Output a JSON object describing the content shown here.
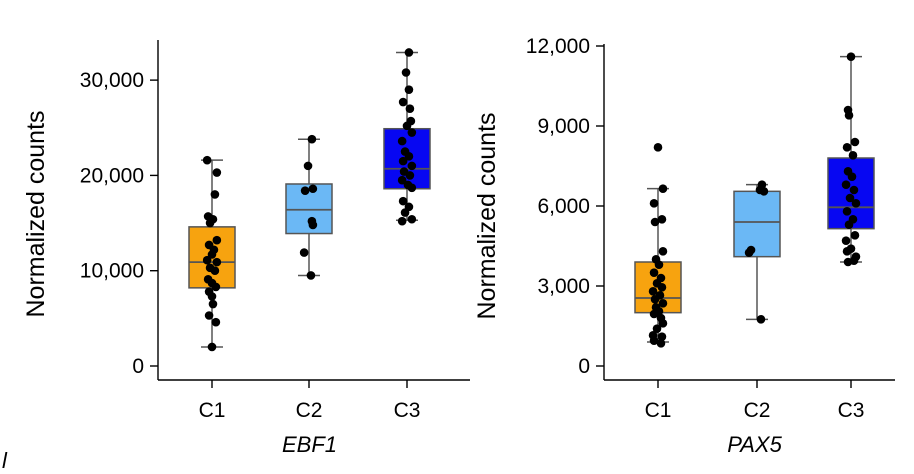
{
  "chart_data": [
    {
      "type": "box",
      "title": "",
      "xlabel": "EBF1",
      "ylabel": "Normalized counts",
      "ylim": [
        0,
        34000
      ],
      "yticks": [
        0,
        10000,
        20000,
        30000
      ],
      "ytick_labels": [
        "0",
        "10,000",
        "20,000",
        "30,000"
      ],
      "categories": [
        "C1",
        "C2",
        "C3"
      ],
      "colors": [
        "#F7A30F",
        "#6BB8F5",
        "#0707F2"
      ],
      "boxes": [
        {
          "category": "C1",
          "whisker_low": 2000,
          "q1": 8200,
          "median": 10900,
          "q3": 14600,
          "whisker_high": 21600
        },
        {
          "category": "C2",
          "whisker_low": 9500,
          "q1": 13900,
          "median": 16400,
          "q3": 19100,
          "whisker_high": 23800
        },
        {
          "category": "C3",
          "whisker_low": 15300,
          "q1": 18600,
          "median": 20700,
          "q3": 24900,
          "whisker_high": 32900
        }
      ],
      "points": [
        [
          {
            "x": -0.05,
            "y": 21600
          },
          {
            "x": 0.05,
            "y": 20300
          },
          {
            "x": 0.03,
            "y": 18000
          },
          {
            "x": -0.04,
            "y": 15700
          },
          {
            "x": 0.01,
            "y": 15400
          },
          {
            "x": -0.02,
            "y": 15000
          },
          {
            "x": 0.05,
            "y": 13200
          },
          {
            "x": -0.03,
            "y": 12700
          },
          {
            "x": 0.02,
            "y": 12200
          },
          {
            "x": 0.0,
            "y": 11700
          },
          {
            "x": -0.05,
            "y": 11100
          },
          {
            "x": 0.05,
            "y": 10900
          },
          {
            "x": -0.02,
            "y": 10300
          },
          {
            "x": 0.03,
            "y": 10000
          },
          {
            "x": -0.04,
            "y": 9100
          },
          {
            "x": 0.0,
            "y": 8700
          },
          {
            "x": 0.04,
            "y": 8300
          },
          {
            "x": -0.03,
            "y": 7800
          },
          {
            "x": 0.0,
            "y": 7300
          },
          {
            "x": 0.01,
            "y": 6500
          },
          {
            "x": -0.03,
            "y": 5300
          },
          {
            "x": 0.04,
            "y": 4600
          },
          {
            "x": 0.0,
            "y": 2000
          }
        ],
        [
          {
            "x": 0.03,
            "y": 23800
          },
          {
            "x": -0.01,
            "y": 21000
          },
          {
            "x": 0.04,
            "y": 18600
          },
          {
            "x": -0.04,
            "y": 18400
          },
          {
            "x": 0.03,
            "y": 15200
          },
          {
            "x": 0.04,
            "y": 14800
          },
          {
            "x": -0.05,
            "y": 11900
          },
          {
            "x": 0.02,
            "y": 9500
          }
        ],
        [
          {
            "x": 0.02,
            "y": 32900
          },
          {
            "x": -0.01,
            "y": 30800
          },
          {
            "x": 0.02,
            "y": 29000
          },
          {
            "x": -0.04,
            "y": 27700
          },
          {
            "x": 0.03,
            "y": 27000
          },
          {
            "x": 0.04,
            "y": 25700
          },
          {
            "x": 0.0,
            "y": 25200
          },
          {
            "x": 0.05,
            "y": 24500
          },
          {
            "x": -0.05,
            "y": 23600
          },
          {
            "x": -0.02,
            "y": 22500
          },
          {
            "x": 0.02,
            "y": 22000
          },
          {
            "x": -0.04,
            "y": 21500
          },
          {
            "x": 0.05,
            "y": 21000
          },
          {
            "x": -0.03,
            "y": 20400
          },
          {
            "x": 0.03,
            "y": 20000
          },
          {
            "x": -0.05,
            "y": 19500
          },
          {
            "x": 0.01,
            "y": 19000
          },
          {
            "x": 0.05,
            "y": 18700
          },
          {
            "x": -0.04,
            "y": 17300
          },
          {
            "x": 0.02,
            "y": 16700
          },
          {
            "x": -0.02,
            "y": 16100
          },
          {
            "x": 0.05,
            "y": 15400
          },
          {
            "x": -0.05,
            "y": 15200
          }
        ]
      ]
    },
    {
      "type": "box",
      "title": "",
      "xlabel": "PAX5",
      "ylabel": "Normalized counts",
      "ylim": [
        0,
        12000
      ],
      "yticks": [
        0,
        3000,
        6000,
        9000,
        12000
      ],
      "ytick_labels": [
        "0",
        "3,000",
        "6,000",
        "9,000",
        "12,000"
      ],
      "categories": [
        "C1",
        "C2",
        "C3"
      ],
      "colors": [
        "#F7A30F",
        "#6BB8F5",
        "#0707F2"
      ],
      "boxes": [
        {
          "category": "C1",
          "whisker_low": 900,
          "q1": 2000,
          "median": 2550,
          "q3": 3900,
          "whisker_high": 6650
        },
        {
          "category": "C2",
          "whisker_low": 1750,
          "q1": 4100,
          "median": 5400,
          "q3": 6550,
          "whisker_high": 6800
        },
        {
          "category": "C3",
          "whisker_low": 3900,
          "q1": 5150,
          "median": 5950,
          "q3": 7800,
          "whisker_high": 11600
        }
      ],
      "points": [
        [
          {
            "x": 0.0,
            "y": 8200
          },
          {
            "x": 0.05,
            "y": 6650
          },
          {
            "x": -0.04,
            "y": 6100
          },
          {
            "x": 0.04,
            "y": 5500
          },
          {
            "x": -0.03,
            "y": 5400
          },
          {
            "x": 0.05,
            "y": 4300
          },
          {
            "x": -0.02,
            "y": 4000
          },
          {
            "x": 0.01,
            "y": 3800
          },
          {
            "x": -0.04,
            "y": 3500
          },
          {
            "x": 0.03,
            "y": 3300
          },
          {
            "x": -0.01,
            "y": 3100
          },
          {
            "x": 0.04,
            "y": 2950
          },
          {
            "x": -0.05,
            "y": 2800
          },
          {
            "x": 0.02,
            "y": 2650
          },
          {
            "x": -0.03,
            "y": 2500
          },
          {
            "x": 0.05,
            "y": 2350
          },
          {
            "x": -0.02,
            "y": 2200
          },
          {
            "x": 0.01,
            "y": 2050
          },
          {
            "x": -0.04,
            "y": 1950
          },
          {
            "x": 0.03,
            "y": 1800
          },
          {
            "x": 0.05,
            "y": 1600
          },
          {
            "x": -0.01,
            "y": 1400
          },
          {
            "x": -0.05,
            "y": 1150
          },
          {
            "x": 0.04,
            "y": 1100
          },
          {
            "x": -0.04,
            "y": 950
          },
          {
            "x": 0.03,
            "y": 850
          }
        ],
        [
          {
            "x": 0.05,
            "y": 6800
          },
          {
            "x": 0.03,
            "y": 6600
          },
          {
            "x": 0.07,
            "y": 6550
          },
          {
            "x": -0.06,
            "y": 4350
          },
          {
            "x": -0.08,
            "y": 4250
          },
          {
            "x": 0.04,
            "y": 1750
          }
        ],
        [
          {
            "x": 0.0,
            "y": 11600
          },
          {
            "x": -0.03,
            "y": 9600
          },
          {
            "x": -0.02,
            "y": 9400
          },
          {
            "x": 0.04,
            "y": 8400
          },
          {
            "x": -0.04,
            "y": 8200
          },
          {
            "x": 0.02,
            "y": 7900
          },
          {
            "x": -0.03,
            "y": 7300
          },
          {
            "x": 0.01,
            "y": 7100
          },
          {
            "x": -0.05,
            "y": 6800
          },
          {
            "x": 0.03,
            "y": 6600
          },
          {
            "x": -0.01,
            "y": 6300
          },
          {
            "x": 0.05,
            "y": 6100
          },
          {
            "x": -0.04,
            "y": 5800
          },
          {
            "x": 0.02,
            "y": 5500
          },
          {
            "x": -0.02,
            "y": 5300
          },
          {
            "x": 0.04,
            "y": 4900
          },
          {
            "x": -0.05,
            "y": 4700
          },
          {
            "x": 0.0,
            "y": 4400
          },
          {
            "x": -0.04,
            "y": 4300
          },
          {
            "x": 0.05,
            "y": 4100
          },
          {
            "x": 0.03,
            "y": 3950
          },
          {
            "x": -0.03,
            "y": 3900
          }
        ]
      ]
    }
  ],
  "corner_label": "l"
}
